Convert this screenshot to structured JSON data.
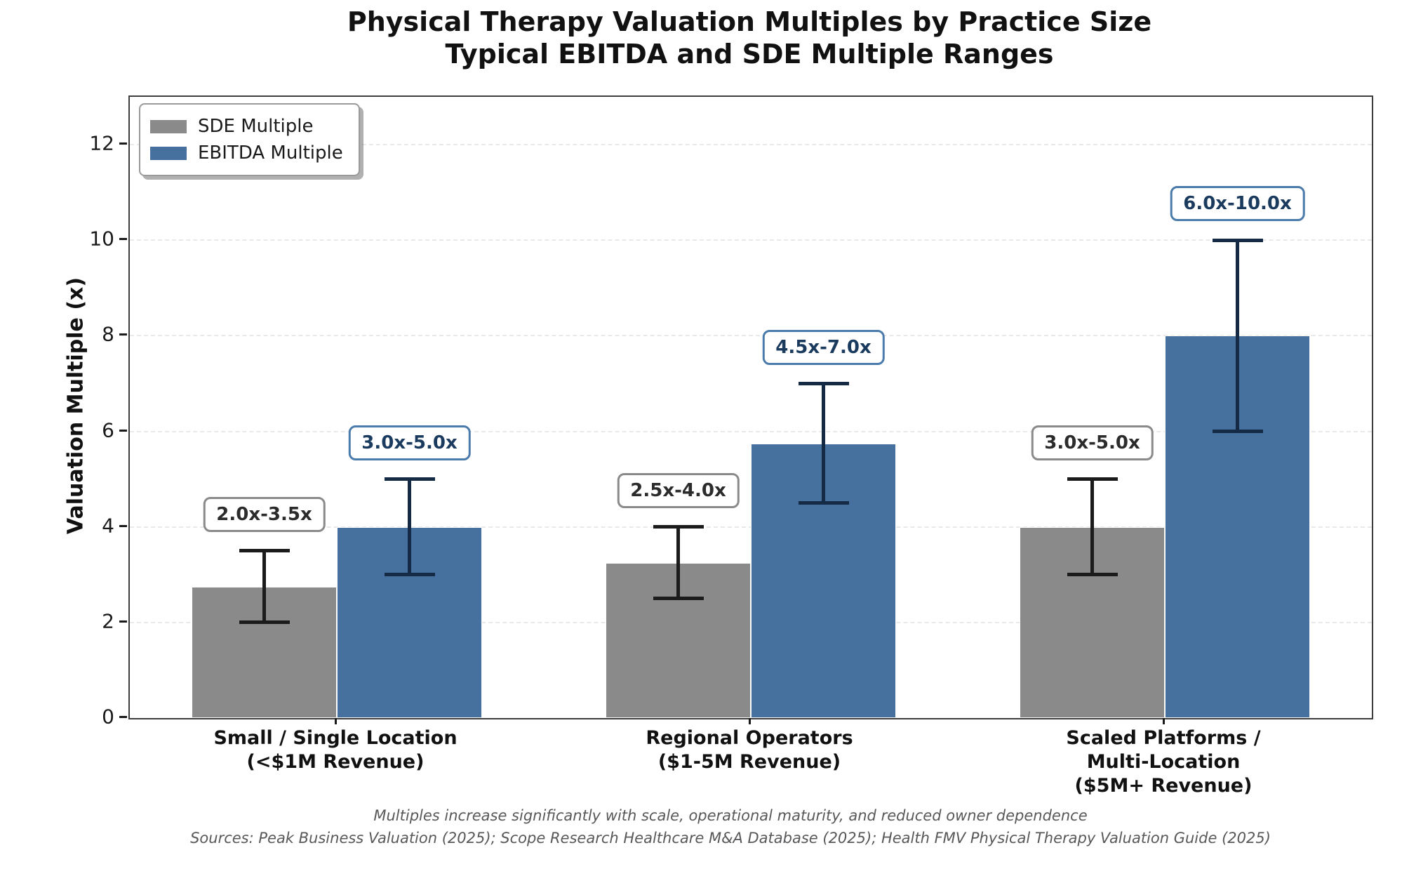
{
  "chart_data": {
    "type": "bar",
    "title": "Physical Therapy Valuation Multiples by Practice Size",
    "subtitle": "Typical EBITDA and SDE Multiple Ranges",
    "ylabel": "Valuation Multiple (x)",
    "ylim": [
      0,
      13
    ],
    "yticks": [
      0,
      2,
      4,
      6,
      8,
      10,
      12
    ],
    "grid": "horizontal-dashed",
    "legend_position": "upper-left",
    "categories": [
      [
        "Small / Single Location",
        "(<$1M Revenue)"
      ],
      [
        "Regional Operators",
        "($1-5M Revenue)"
      ],
      [
        "Scaled Platforms /",
        "Multi-Location",
        "($5M+ Revenue)"
      ]
    ],
    "series": [
      {
        "name": "SDE Multiple",
        "color": "#8a8a8a",
        "error_color": "#1b1b1b",
        "values": [
          2.75,
          3.25,
          4.0
        ],
        "error_low": [
          2.0,
          2.5,
          3.0
        ],
        "error_high": [
          3.5,
          4.0,
          5.0
        ],
        "range_labels": [
          "2.0x-3.5x",
          "2.5x-4.0x",
          "3.0x-5.0x"
        ],
        "label_text_color": "#2b2b2b",
        "label_border_color": "#8a8a8a"
      },
      {
        "name": "EBITDA Multiple",
        "color": "#46719e",
        "error_color": "#142a45",
        "values": [
          4.0,
          5.75,
          8.0
        ],
        "error_low": [
          3.0,
          4.5,
          6.0
        ],
        "error_high": [
          5.0,
          7.0,
          10.0
        ],
        "range_labels": [
          "3.0x-5.0x",
          "4.5x-7.0x",
          "6.0x-10.0x"
        ],
        "label_text_color": "#1a3a5e",
        "label_border_color": "#4b7bab"
      }
    ],
    "footnote": "Multiples increase significantly with scale, operational maturity, and reduced owner dependence",
    "sources": "Sources: Peak Business Valuation (2025); Scope Research Healthcare M&A Database (2025); Health FMV Physical Therapy Valuation Guide (2025)"
  }
}
